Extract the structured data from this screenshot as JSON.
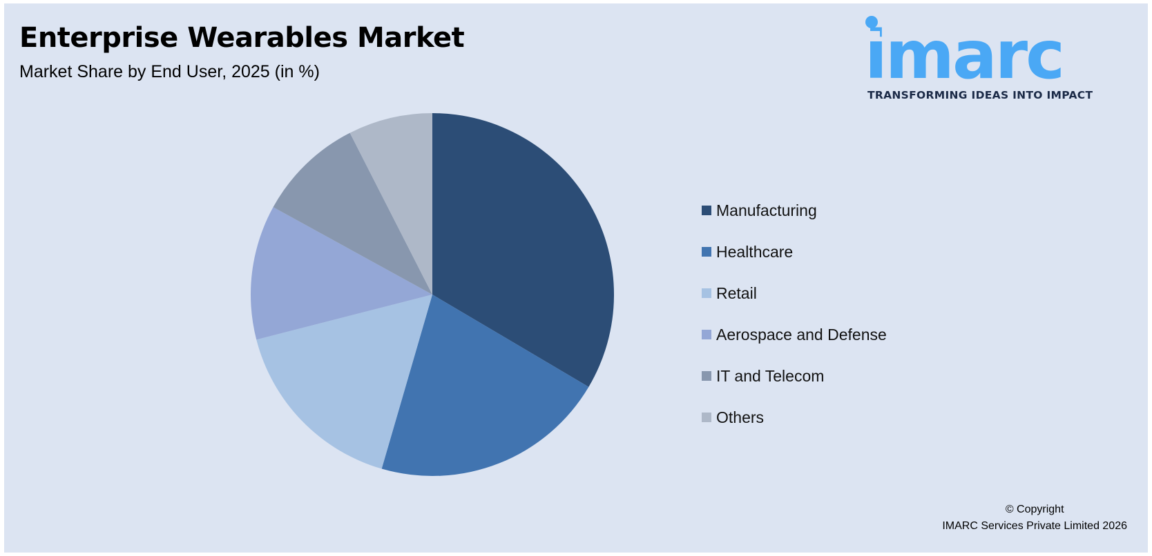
{
  "header": {
    "title": "Enterprise Wearables Market",
    "subtitle": "Market Share by End User, 2025 (in %)"
  },
  "logo": {
    "wordmark": "imarc",
    "tagline": "TRANSFORMING IDEAS INTO IMPACT",
    "color": "#4aa8f5"
  },
  "chart_data": {
    "type": "pie",
    "title": "Enterprise Wearables Market",
    "subtitle": "Market Share by End User, 2025 (in %)",
    "categories": [
      "Manufacturing",
      "Healthcare",
      "Retail",
      "Aerospace and Defense",
      "IT and Telecom",
      "Others"
    ],
    "values": [
      33.5,
      21,
      16.5,
      12,
      9.5,
      7.5
    ],
    "colors": [
      "#2c4d76",
      "#4174b0",
      "#a6c2e3",
      "#94a7d6",
      "#8897ae",
      "#aeb8c8"
    ],
    "start_angle": "12 o'clock",
    "direction": "clockwise",
    "legend_position": "right"
  },
  "footer": {
    "copyright_line1": "© Copyright",
    "copyright_line2": "IMARC Services Private Limited 2026"
  }
}
